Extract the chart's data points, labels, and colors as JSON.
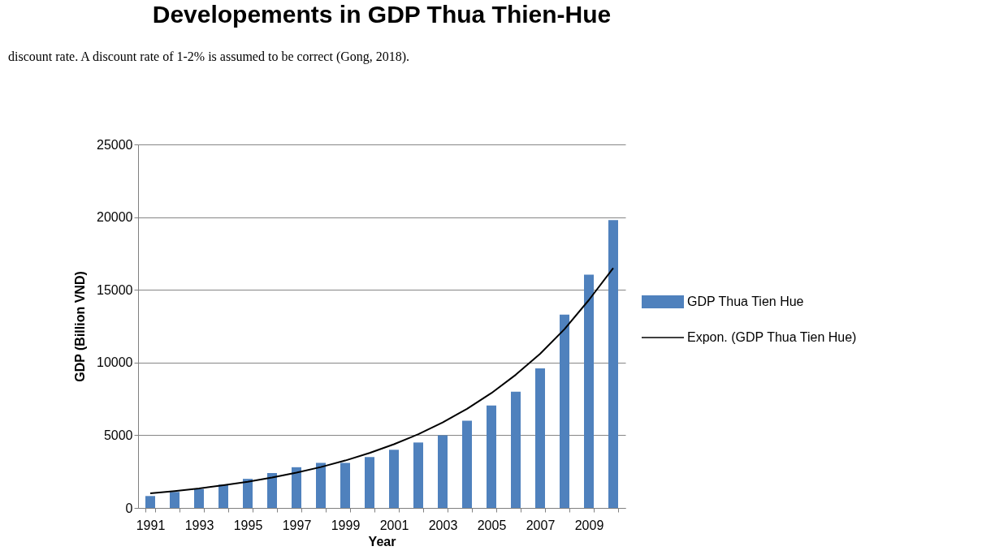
{
  "chart_data": {
    "type": "bar",
    "title": "Developements in GDP Thua Thien-Hue",
    "xlabel": "Year",
    "ylabel": "GDP (Billion VND)",
    "annotations": [
      "discount rate. A discount rate of 1-2% is assumed to be correct (Gong, 2018)."
    ],
    "categories": [
      "1991",
      null,
      "1993",
      null,
      "1995",
      null,
      "1997",
      null,
      "1999",
      null,
      "2001",
      null,
      "2003",
      null,
      "2005",
      null,
      "2007",
      null,
      "2009",
      null
    ],
    "series": [
      {
        "name": "GDP Thua Tien Hue",
        "color": "#4f81bd",
        "values": [
          820,
          1100,
          1300,
          1600,
          2000,
          2400,
          2800,
          3100,
          3100,
          3500,
          4000,
          4500,
          5000,
          6000,
          7050,
          8000,
          9600,
          13300,
          16050,
          19800
        ]
      },
      {
        "name": "Expon. (GDP Thua Tien Hue)",
        "type": "line",
        "color": "#000000",
        "values": [
          1000,
          1160,
          1340,
          1560,
          1800,
          2090,
          2430,
          2810,
          3260,
          3780,
          4380,
          5070,
          5880,
          6820,
          7900,
          9160,
          10600,
          12300,
          14300,
          16500
        ]
      }
    ],
    "ylim": [
      0,
      25000
    ],
    "yticks": [
      0,
      5000,
      10000,
      15000,
      20000,
      25000
    ],
    "grid": "y",
    "legend": "right"
  }
}
